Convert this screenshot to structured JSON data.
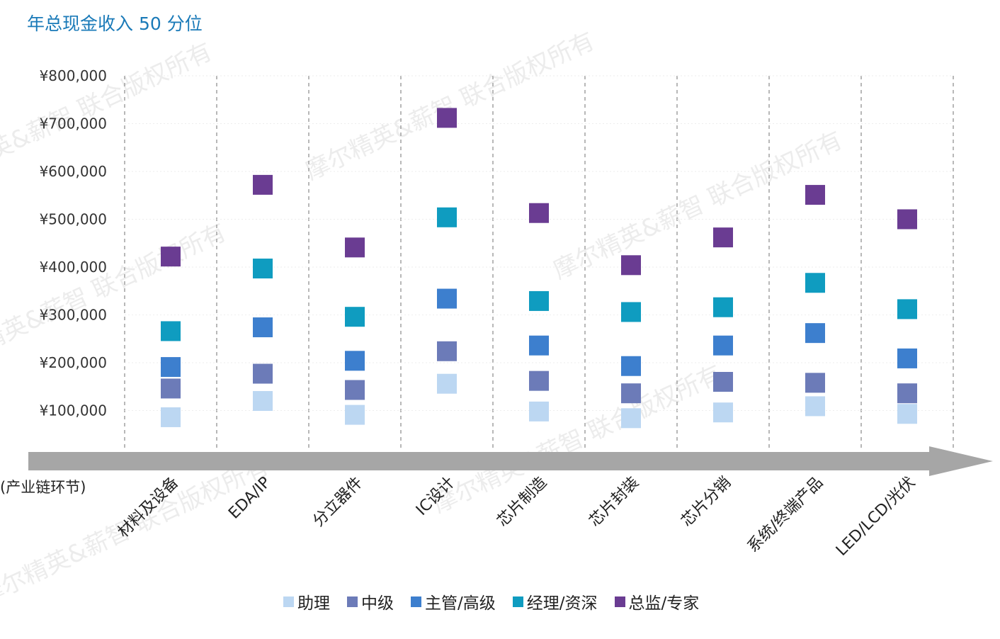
{
  "title": "年总现金收入 50 分位",
  "x_axis_caption": "(产业链环节)",
  "watermark": "摩尔精英&薪智 联合版权所有",
  "colors": {
    "助理": "#bcd7f2",
    "中级": "#6c7bb8",
    "主管/高级": "#3d7fce",
    "经理/资深": "#0f9cc0",
    "总监/专家": "#6a3c92",
    "axis_arrow": "#a6a6a6",
    "gridline": "#a0a0a0"
  },
  "chart_data": {
    "type": "scatter",
    "title": "年总现金收入 50 分位",
    "xlabel": "(产业链环节)",
    "ylabel": "",
    "ylim": [
      0,
      800000
    ],
    "y_ticks": [
      100000,
      200000,
      300000,
      400000,
      500000,
      600000,
      700000,
      800000
    ],
    "y_tick_labels": [
      "¥100,000",
      "¥200,000",
      "¥300,000",
      "¥400,000",
      "¥500,000",
      "¥600,000",
      "¥700,000",
      "¥800,000"
    ],
    "categories": [
      "材料及设备",
      "EDA/IP",
      "分立器件",
      "IC设计",
      "芯片制造",
      "芯片封装",
      "芯片分销",
      "系统/终端产品",
      "LED/LCD/光伏"
    ],
    "series": [
      {
        "name": "助理",
        "values": [
          86000,
          120000,
          91000,
          156000,
          98000,
          84000,
          96000,
          109000,
          93000
        ]
      },
      {
        "name": "中级",
        "values": [
          146000,
          177000,
          143000,
          224000,
          162000,
          136000,
          160000,
          158000,
          136000
        ]
      },
      {
        "name": "主管/高级",
        "values": [
          191000,
          274000,
          204000,
          334000,
          236000,
          193000,
          236000,
          262000,
          209000
        ]
      },
      {
        "name": "经理/资深",
        "values": [
          266000,
          397000,
          296000,
          504000,
          329000,
          306000,
          316000,
          367000,
          312000
        ]
      },
      {
        "name": "总监/专家",
        "values": [
          422000,
          572000,
          441000,
          712000,
          513000,
          404000,
          462000,
          551000,
          500000
        ]
      }
    ],
    "grid": true,
    "legend_position": "bottom"
  }
}
